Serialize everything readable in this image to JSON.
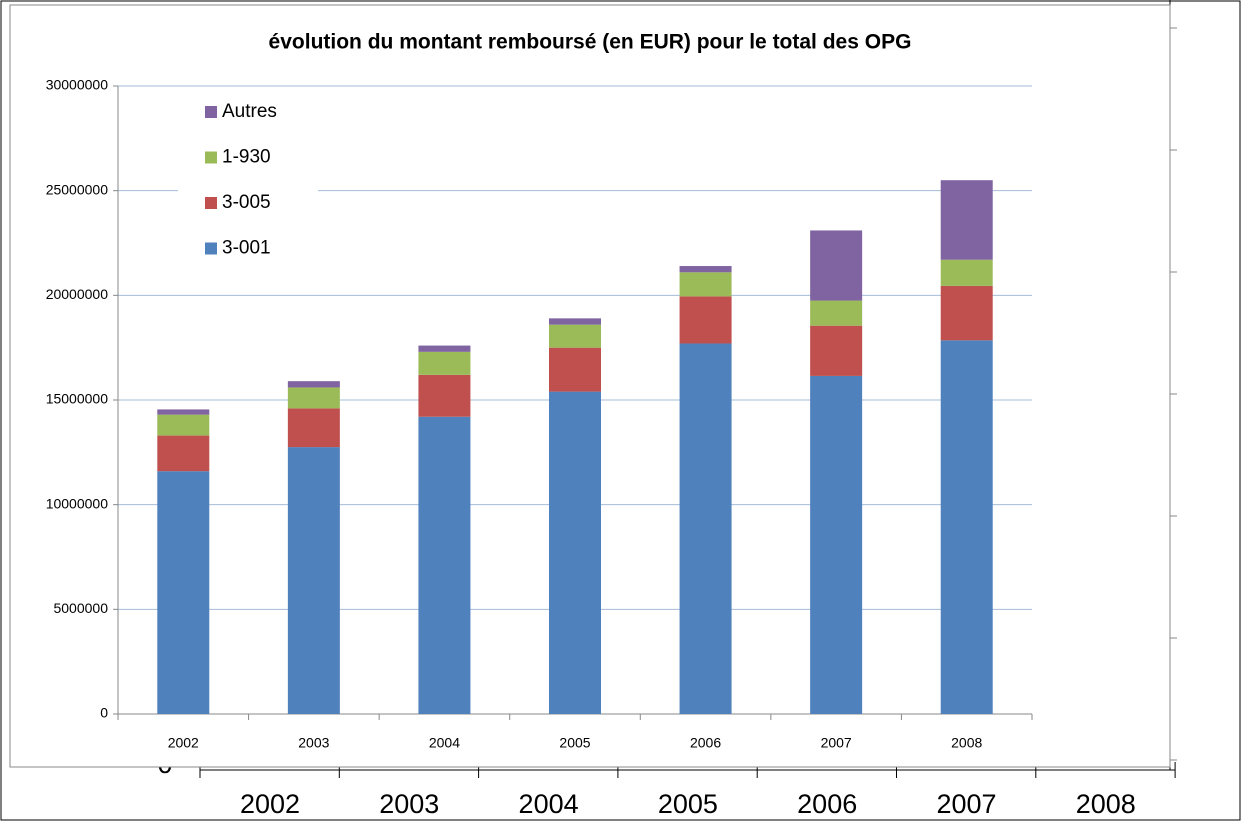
{
  "chart_data": {
    "type": "stacked_bar",
    "title": "évolution du montant remboursé (en EUR) pour le total des OPG",
    "categories": [
      "2002",
      "2003",
      "2004",
      "2005",
      "2006",
      "2007",
      "2008"
    ],
    "series": [
      {
        "name": "3-001",
        "color": "#4f81bd",
        "values": [
          11600000,
          12750000,
          14200000,
          15400000,
          17700000,
          16150000,
          17850000
        ]
      },
      {
        "name": "3-005",
        "color": "#c0504d",
        "values": [
          1700000,
          1850000,
          2000000,
          2100000,
          2250000,
          2400000,
          2600000
        ]
      },
      {
        "name": "1-930",
        "color": "#9bbb59",
        "values": [
          1000000,
          1000000,
          1100000,
          1100000,
          1150000,
          1200000,
          1250000
        ]
      },
      {
        "name": "Autres",
        "color": "#8064a2",
        "values": [
          250000,
          300000,
          300000,
          300000,
          300000,
          3350000,
          3800000
        ]
      }
    ],
    "ylim": [
      0,
      30000000
    ],
    "yticks": [
      0,
      5000000,
      10000000,
      15000000,
      20000000,
      25000000,
      30000000
    ],
    "grid": true,
    "legend": "top-left"
  },
  "underlay": {
    "zero_label": "0",
    "labels": [
      "2002",
      "2003",
      "2004",
      "2005",
      "2006",
      "2007",
      "2008"
    ]
  }
}
